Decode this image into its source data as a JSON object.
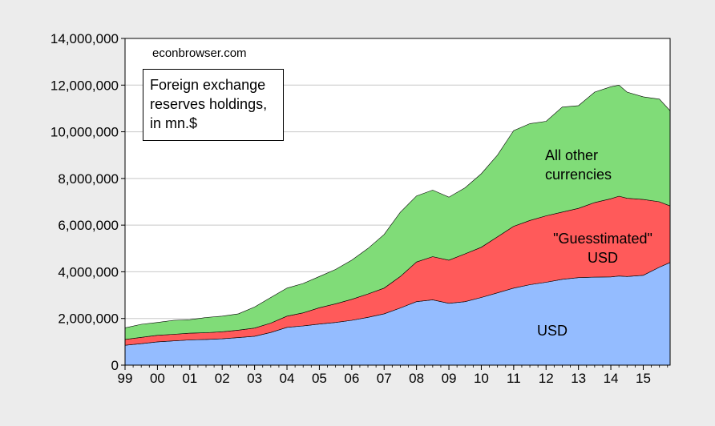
{
  "chart_data": {
    "type": "area",
    "stacked": true,
    "title": "",
    "xlabel": "",
    "ylabel": "",
    "annotation_title": [
      "Foreign exchange",
      "reserves holdings,",
      "in mn.$"
    ],
    "credit": "econbrowser.com",
    "ylim": [
      0,
      14000000
    ],
    "yticks": [
      0,
      2000000,
      4000000,
      6000000,
      8000000,
      10000000,
      12000000,
      14000000
    ],
    "ytick_labels": [
      "0",
      "2,000,000",
      "4,000,000",
      "6,000,000",
      "8,000,000",
      "10,000,000",
      "12,000,000",
      "14,000,000"
    ],
    "xlim": [
      1999.0,
      2015.83
    ],
    "xtick_labels": [
      "99",
      "00",
      "01",
      "02",
      "03",
      "04",
      "05",
      "06",
      "07",
      "08",
      "09",
      "10",
      "11",
      "12",
      "13",
      "14",
      "15"
    ],
    "xtick_years": [
      1999,
      2000,
      2001,
      2002,
      2003,
      2004,
      2005,
      2006,
      2007,
      2008,
      2009,
      2010,
      2011,
      2012,
      2013,
      2014,
      2015
    ],
    "grid": true,
    "x": [
      1999.0,
      1999.5,
      2000.0,
      2000.5,
      2001.0,
      2001.5,
      2002.0,
      2002.5,
      2003.0,
      2003.5,
      2004.0,
      2004.5,
      2005.0,
      2005.5,
      2006.0,
      2006.5,
      2007.0,
      2007.5,
      2008.0,
      2008.5,
      2009.0,
      2009.5,
      2010.0,
      2010.5,
      2011.0,
      2011.5,
      2012.0,
      2012.5,
      2013.0,
      2013.5,
      2014.0,
      2014.25,
      2014.5,
      2015.0,
      2015.5,
      2015.83
    ],
    "series": [
      {
        "name": "USD",
        "color": "#94bcff",
        "values": [
          850000,
          920000,
          1000000,
          1040000,
          1080000,
          1100000,
          1130000,
          1180000,
          1240000,
          1400000,
          1620000,
          1680000,
          1760000,
          1830000,
          1920000,
          2050000,
          2200000,
          2450000,
          2720000,
          2800000,
          2650000,
          2720000,
          2900000,
          3100000,
          3300000,
          3450000,
          3550000,
          3680000,
          3750000,
          3770000,
          3780000,
          3820000,
          3800000,
          3850000,
          4200000,
          4400000
        ]
      },
      {
        "name": "\"Guesstimated\" USD",
        "color": "#ff5a5a",
        "values": [
          250000,
          270000,
          280000,
          280000,
          290000,
          290000,
          300000,
          320000,
          350000,
          400000,
          480000,
          560000,
          700000,
          800000,
          900000,
          1000000,
          1100000,
          1350000,
          1700000,
          1850000,
          1850000,
          2050000,
          2150000,
          2400000,
          2650000,
          2750000,
          2850000,
          2880000,
          2970000,
          3200000,
          3350000,
          3420000,
          3350000,
          3250000,
          2800000,
          2420000
        ]
      },
      {
        "name": "All other currencies",
        "color": "#80dc78",
        "values": [
          500000,
          560000,
          550000,
          600000,
          580000,
          650000,
          670000,
          700000,
          900000,
          1100000,
          1200000,
          1260000,
          1340000,
          1470000,
          1680000,
          1950000,
          2300000,
          2750000,
          2830000,
          2850000,
          2700000,
          2830000,
          3150000,
          3500000,
          4100000,
          4150000,
          4050000,
          4500000,
          4400000,
          4730000,
          4800000,
          4760000,
          4550000,
          4400000,
          4400000,
          4080000
        ]
      }
    ],
    "labels": {
      "usd": [
        "USD"
      ],
      "guess": [
        "\"Guesstimated\"",
        "USD"
      ],
      "other": [
        "All other",
        "currencies"
      ]
    }
  }
}
